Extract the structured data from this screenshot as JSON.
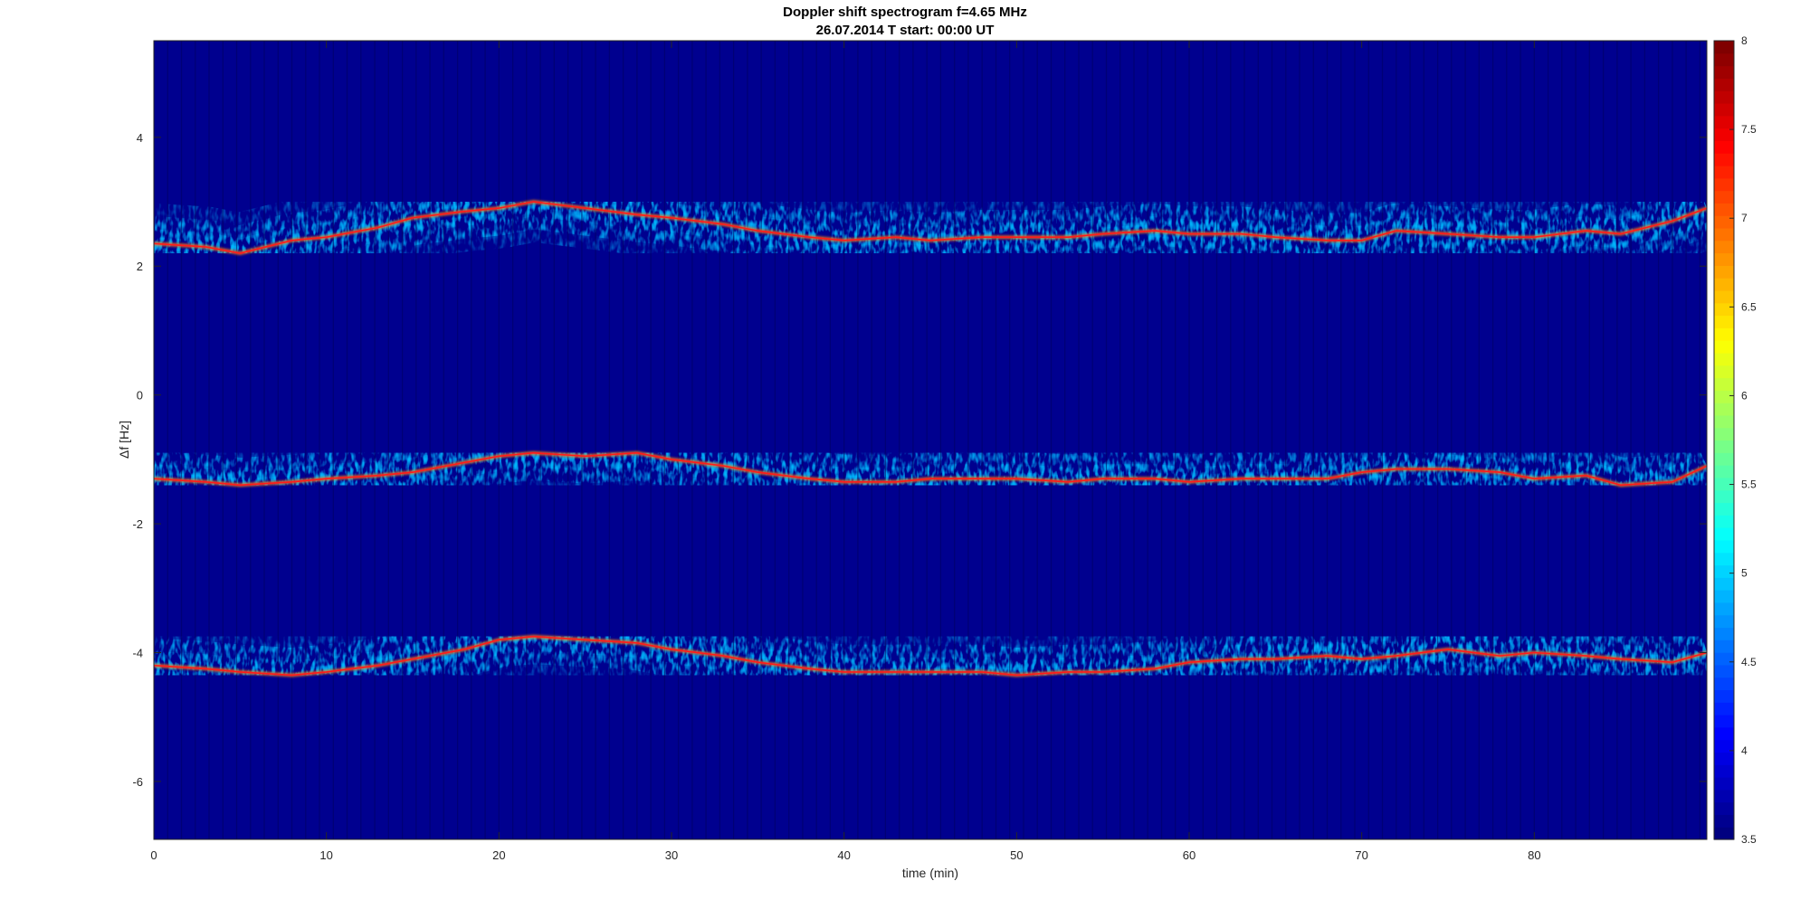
{
  "figure": {
    "title_line1": "Doppler shift spectrogram f=4.65 MHz",
    "title_line2": "26.07.2014   T start: 00:00 UT"
  },
  "chart_data": {
    "type": "heatmap",
    "title": "Doppler shift spectrogram f=4.65 MHz",
    "subtitle": "26.07.2014   T start: 00:00 UT",
    "xlabel": "time (min)",
    "ylabel": "Δf [Hz]",
    "xlim": [
      0,
      90
    ],
    "ylim": [
      -6.9,
      5.5
    ],
    "x_ticks": [
      0,
      10,
      20,
      30,
      40,
      50,
      60,
      70,
      80
    ],
    "y_ticks": [
      -6,
      -4,
      -2,
      0,
      2,
      4
    ],
    "colorbar": {
      "range": [
        3.5,
        8
      ],
      "ticks": [
        3.5,
        4,
        4.5,
        5,
        5.5,
        6,
        6.5,
        7,
        7.5,
        8
      ],
      "colormap": "jet",
      "background_color": "#00008f"
    },
    "series": [
      {
        "time": [
          0,
          3,
          5,
          8,
          10,
          13,
          15,
          18,
          20,
          22,
          25,
          28,
          30,
          33,
          35,
          38,
          40,
          43,
          45,
          48,
          50,
          53,
          55,
          58,
          60,
          63,
          65,
          68,
          70,
          72,
          75,
          78,
          80,
          83,
          85,
          88,
          90
        ],
        "values": [
          2.35,
          2.3,
          2.2,
          2.4,
          2.45,
          2.6,
          2.75,
          2.85,
          2.9,
          3.0,
          2.9,
          2.8,
          2.75,
          2.65,
          2.55,
          2.45,
          2.4,
          2.45,
          2.4,
          2.45,
          2.45,
          2.45,
          2.5,
          2.55,
          2.5,
          2.5,
          2.45,
          2.4,
          2.4,
          2.55,
          2.5,
          2.45,
          2.45,
          2.55,
          2.5,
          2.7,
          2.9
        ]
      },
      {
        "time": [
          0,
          3,
          5,
          8,
          10,
          13,
          15,
          18,
          20,
          22,
          25,
          28,
          30,
          33,
          35,
          38,
          40,
          43,
          45,
          48,
          50,
          53,
          55,
          58,
          60,
          63,
          65,
          68,
          70,
          72,
          75,
          78,
          80,
          83,
          85,
          88,
          90
        ],
        "values": [
          -1.3,
          -1.35,
          -1.4,
          -1.35,
          -1.3,
          -1.25,
          -1.2,
          -1.05,
          -0.95,
          -0.9,
          -0.95,
          -0.9,
          -1.0,
          -1.1,
          -1.2,
          -1.3,
          -1.35,
          -1.35,
          -1.3,
          -1.3,
          -1.3,
          -1.35,
          -1.3,
          -1.3,
          -1.35,
          -1.3,
          -1.3,
          -1.3,
          -1.2,
          -1.15,
          -1.15,
          -1.2,
          -1.3,
          -1.25,
          -1.4,
          -1.35,
          -1.1
        ]
      },
      {
        "time": [
          0,
          3,
          5,
          8,
          10,
          13,
          15,
          18,
          20,
          22,
          25,
          28,
          30,
          33,
          35,
          38,
          40,
          43,
          45,
          48,
          50,
          53,
          55,
          58,
          60,
          63,
          65,
          68,
          70,
          72,
          75,
          78,
          80,
          83,
          85,
          88,
          90
        ],
        "values": [
          -4.2,
          -4.25,
          -4.3,
          -4.35,
          -4.3,
          -4.2,
          -4.1,
          -3.95,
          -3.8,
          -3.75,
          -3.8,
          -3.85,
          -3.95,
          -4.05,
          -4.15,
          -4.25,
          -4.3,
          -4.3,
          -4.3,
          -4.3,
          -4.35,
          -4.3,
          -4.3,
          -4.25,
          -4.15,
          -4.1,
          -4.1,
          -4.05,
          -4.1,
          -4.05,
          -3.95,
          -4.05,
          -4.0,
          -4.05,
          -4.1,
          -4.15,
          -4.0
        ]
      }
    ]
  }
}
